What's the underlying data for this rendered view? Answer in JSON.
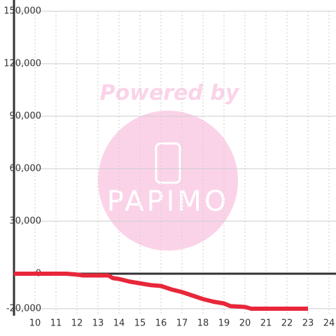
{
  "chart_data": {
    "type": "line",
    "watermark": {
      "line1": "Powered by",
      "line2": "PAPIMO"
    },
    "x": [
      9,
      10,
      11,
      11.5,
      12,
      12.3,
      13,
      13.5,
      13.7,
      14,
      14.5,
      15,
      15.5,
      16,
      16.5,
      17,
      17.5,
      18,
      18.5,
      19,
      19.3,
      20,
      20.3,
      21,
      22,
      23
    ],
    "series": [
      {
        "color": "#e8273a",
        "values": [
          0,
          0,
          0,
          0,
          -500,
          -1000,
          -1000,
          -1000,
          -2500,
          -3000,
          -4500,
          -5500,
          -6500,
          -7000,
          -9000,
          -10500,
          -12500,
          -14500,
          -16000,
          -17000,
          -18500,
          -19000,
          -20000,
          -20000,
          -20000,
          -20000
        ]
      }
    ],
    "xlim": [
      9,
      24.4
    ],
    "xticks": [
      10,
      11,
      12,
      13,
      14,
      15,
      16,
      17,
      18,
      19,
      20,
      21,
      22,
      23,
      24
    ],
    "ylim": [
      -24000,
      150000
    ],
    "yticks": [
      {
        "value": -20000,
        "label": "-20,000"
      },
      0,
      {
        "value": 30000,
        "label": "30,000"
      },
      {
        "value": 60000,
        "label": "60,000"
      },
      {
        "value": 90000,
        "label": "90,000"
      },
      {
        "value": 120000,
        "label": "120,000"
      },
      {
        "value": 150000,
        "label": "150,000"
      }
    ],
    "grid": true
  }
}
